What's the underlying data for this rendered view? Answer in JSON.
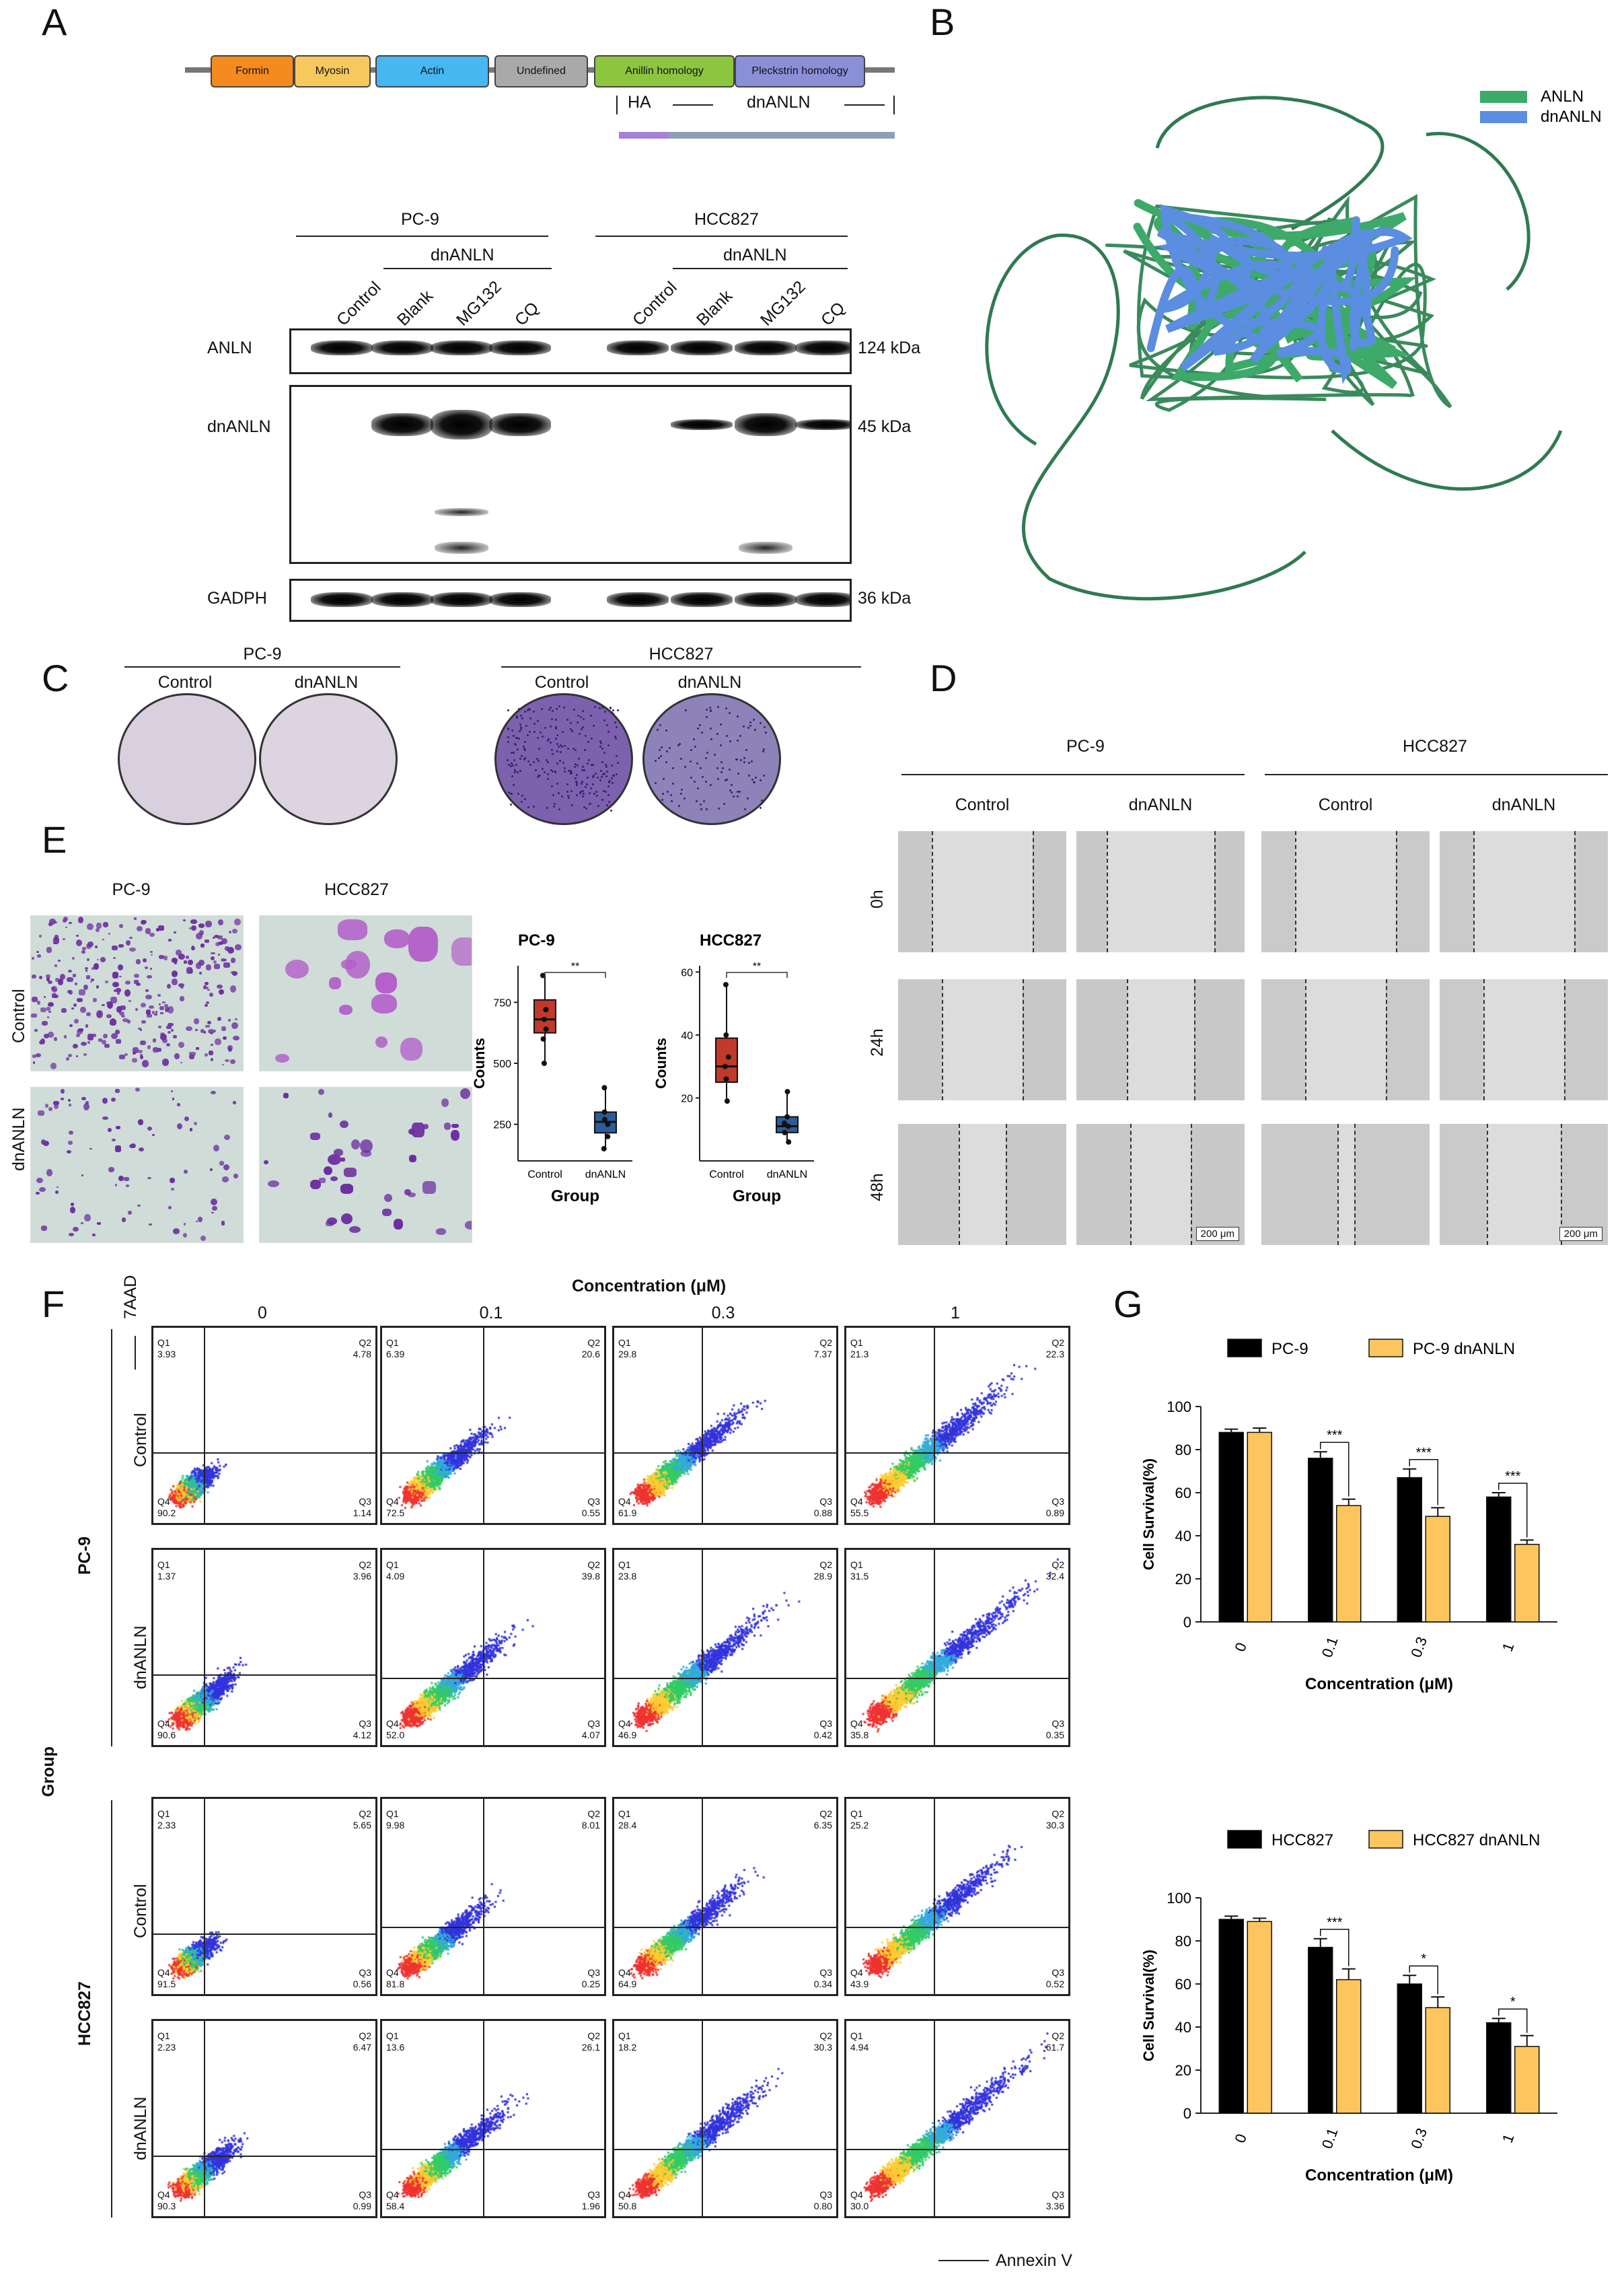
{
  "panel_labels": {
    "a": "A",
    "b": "B",
    "c": "C",
    "d": "D",
    "e": "E",
    "f": "F",
    "g": "G"
  },
  "panel_a": {
    "domains": [
      {
        "label": "Formin",
        "color": "#f58a1f"
      },
      {
        "label": "Myosin",
        "color": "#f7c95c"
      },
      {
        "label": "Actin",
        "color": "#46b7f0"
      },
      {
        "label": "Undefined",
        "color": "#a9a9a9"
      },
      {
        "label": "Anillin homology",
        "color": "#8cc63f"
      },
      {
        "label": "Pleckstrin homology",
        "color": "#8a8fd8"
      }
    ],
    "ha_label": "HA",
    "dnanln_label": "dnANLN",
    "cell_lines": [
      "PC-9",
      "HCC827"
    ],
    "lanes": [
      "Control",
      "Blank",
      "MG132",
      "CQ",
      "Control",
      "Blank",
      "MG132",
      "CQ"
    ],
    "dn_group": "dnANLN",
    "blots": [
      {
        "name": "ANLN",
        "size": "124 kDa"
      },
      {
        "name": "dnANLN",
        "size": "45 kDa"
      },
      {
        "name": "GADPH",
        "size": "36 kDa"
      }
    ]
  },
  "panel_b": {
    "legend": [
      {
        "label": "ANLN",
        "color": "#3daa6a"
      },
      {
        "label": "dnANLN",
        "color": "#5b8de0"
      }
    ]
  },
  "panel_c": {
    "groups": [
      {
        "title": "PC-9",
        "labels": [
          "Control",
          "dnANLN"
        ]
      },
      {
        "title": "HCC827",
        "labels": [
          "Control",
          "dnANLN"
        ]
      }
    ]
  },
  "panel_d": {
    "cell_lines": [
      "PC-9",
      "HCC827"
    ],
    "columns": [
      "Control",
      "dnANLN",
      "Control",
      "dnANLN"
    ],
    "rows": [
      "0h",
      "24h",
      "48h"
    ],
    "scale": "200 μm"
  },
  "panel_e": {
    "columns": [
      "PC-9",
      "HCC827"
    ],
    "rows": [
      "Control",
      "dnANLN"
    ],
    "plots": [
      {
        "title": "PC-9",
        "ylabel": "Counts",
        "xlabel": "Group",
        "categories": [
          "Control",
          "dnANLN"
        ],
        "yticks": [
          "250",
          "500",
          "750"
        ],
        "sig": "**"
      },
      {
        "title": "HCC827",
        "ylabel": "Counts",
        "xlabel": "Group",
        "categories": [
          "Control",
          "dnANLN"
        ],
        "yticks": [
          "20",
          "40",
          "60"
        ],
        "sig": "**"
      }
    ]
  },
  "panel_f": {
    "title": "Concentration (μM)",
    "concentrations": [
      "0",
      "0.1",
      "0.3",
      "1"
    ],
    "yaxis": "7AAD",
    "xaxis": "Annexin V",
    "group_label": "Group",
    "cell_lines": [
      "PC-9",
      "HCC827"
    ],
    "row_groups": [
      "Control",
      "dnANLN"
    ],
    "quadrants": [
      [
        [
          "3.93",
          "4.78",
          "1.14",
          "90.2"
        ],
        [
          "6.39",
          "20.6",
          "0.55",
          "72.5"
        ],
        [
          "29.8",
          "7.37",
          "0.88",
          "61.9"
        ],
        [
          "21.3",
          "22.3",
          "0.89",
          "55.5"
        ]
      ],
      [
        [
          "1.37",
          "3.96",
          "4.12",
          "90.6"
        ],
        [
          "4.09",
          "39.8",
          "4.07",
          "52.0"
        ],
        [
          "23.8",
          "28.9",
          "0.42",
          "46.9"
        ],
        [
          "31.5",
          "32.4",
          "0.35",
          "35.8"
        ]
      ],
      [
        [
          "2.33",
          "5.65",
          "0.56",
          "91.5"
        ],
        [
          "9.98",
          "8.01",
          "0.25",
          "81.8"
        ],
        [
          "28.4",
          "6.35",
          "0.34",
          "64.9"
        ],
        [
          "25.2",
          "30.3",
          "0.52",
          "43.9"
        ]
      ],
      [
        [
          "2.23",
          "6.47",
          "0.99",
          "90.3"
        ],
        [
          "13.6",
          "26.1",
          "1.96",
          "58.4"
        ],
        [
          "18.2",
          "30.3",
          "0.80",
          "50.8"
        ],
        [
          "4.94",
          "61.7",
          "3.36",
          "30.0"
        ]
      ]
    ]
  },
  "chart_data": [
    {
      "type": "box",
      "title": "PC-9",
      "xlabel": "Group",
      "ylabel": "Counts",
      "categories": [
        "Control",
        "dnANLN"
      ],
      "boxes": [
        {
          "min": 500,
          "q1": 625,
          "median": 680,
          "q3": 760,
          "max": 860,
          "points": [
            860,
            720,
            680,
            640,
            600,
            500
          ]
        },
        {
          "min": 150,
          "q1": 215,
          "median": 260,
          "q3": 300,
          "max": 400,
          "points": [
            400,
            300,
            270,
            250,
            200,
            150
          ]
        }
      ],
      "ylim": [
        100,
        900
      ],
      "significance": "**"
    },
    {
      "type": "box",
      "title": "HCC827",
      "xlabel": "Group",
      "ylabel": "Counts",
      "categories": [
        "Control",
        "dnANLN"
      ],
      "boxes": [
        {
          "min": 19,
          "q1": 25,
          "median": 30,
          "q3": 39,
          "max": 56,
          "points": [
            56,
            40,
            33,
            30,
            26,
            19
          ]
        },
        {
          "min": 6,
          "q1": 9,
          "median": 11,
          "q3": 14,
          "max": 22,
          "points": [
            22,
            14,
            12,
            11,
            9,
            6
          ]
        }
      ],
      "ylim": [
        0,
        62
      ],
      "significance": "**"
    },
    {
      "type": "bar",
      "xlabel": "Concentration (μM)",
      "ylabel": "Cell Survival(%)",
      "categories": [
        "0",
        "0.1",
        "0.3",
        "1"
      ],
      "ylim": [
        0,
        100
      ],
      "yticks": [
        "0",
        "20",
        "40",
        "60",
        "80",
        "100"
      ],
      "series": [
        {
          "name": "PC-9",
          "color": "#000000",
          "values": [
            88,
            76,
            67,
            58
          ],
          "errors": [
            1.5,
            3,
            4,
            2
          ]
        },
        {
          "name": "PC-9 dnANLN",
          "color": "#fdc55e",
          "values": [
            88,
            54,
            49,
            36
          ],
          "errors": [
            2,
            3,
            4,
            2
          ]
        }
      ],
      "significance": [
        "",
        "***",
        "***",
        "***"
      ]
    },
    {
      "type": "bar",
      "xlabel": "Concentration (μM)",
      "ylabel": "Cell Survival(%)",
      "categories": [
        "0",
        "0.1",
        "0.3",
        "1"
      ],
      "ylim": [
        0,
        100
      ],
      "yticks": [
        "0",
        "20",
        "40",
        "60",
        "80",
        "100"
      ],
      "series": [
        {
          "name": "HCC827",
          "color": "#000000",
          "values": [
            90,
            77,
            60,
            42
          ],
          "errors": [
            1.5,
            4,
            4,
            2
          ]
        },
        {
          "name": "HCC827 dnANLN",
          "color": "#fdc55e",
          "values": [
            89,
            62,
            49,
            31
          ],
          "errors": [
            1.5,
            5,
            5,
            5
          ]
        }
      ],
      "significance": [
        "",
        "***",
        "*",
        "*"
      ]
    }
  ]
}
